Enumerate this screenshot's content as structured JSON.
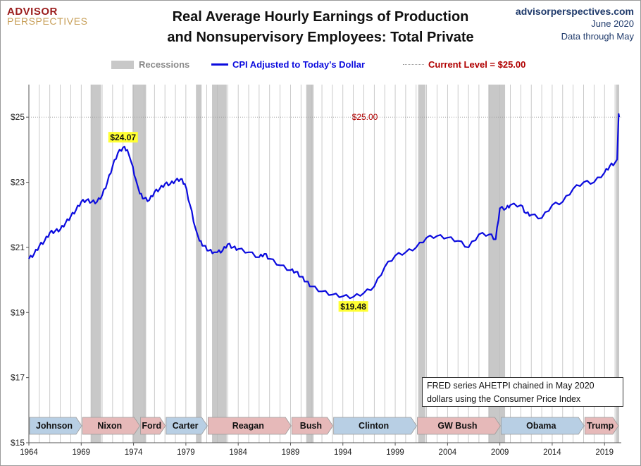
{
  "header": {
    "logo_line1": "ADVISOR",
    "logo_line2": "PERSPECTIVES",
    "site": "advisorperspectives.com",
    "date": "June 2020",
    "data_through": "Data through May"
  },
  "chart_data": {
    "type": "line",
    "title": "Real Average Hourly Earnings of Production and Nonsupervisory Employees: Total Private",
    "title_lines": [
      "Real Average Hourly Earnings of Production",
      "and Nonsupervisory Employees: Total Private"
    ],
    "xlabel": "",
    "ylabel": "",
    "xlim": [
      1964,
      2020.6
    ],
    "ylim": [
      15,
      26
    ],
    "x_ticks": [
      1964,
      1969,
      1974,
      1979,
      1984,
      1989,
      1994,
      1999,
      2004,
      2009,
      2014,
      2019
    ],
    "y_ticks": [
      15,
      17,
      19,
      21,
      23,
      25
    ],
    "y_tick_labels": [
      "$15",
      "$17",
      "$19",
      "$21",
      "$23",
      "$25"
    ],
    "grid": "vertical",
    "legend": {
      "placement": "top",
      "recessions": "Recessions",
      "series": "CPI Adjusted to Today's Dollar",
      "current": "Current Level = $25.00"
    },
    "colors": {
      "line": "#0b0bde",
      "recession": "#c8c8c8",
      "current": "#b00000",
      "annotation_bg": "#ffff33"
    },
    "series": [
      {
        "name": "CPI Adjusted to Today's Dollar",
        "x": [
          1964.0,
          1964.5,
          1965.0,
          1965.5,
          1966.0,
          1966.5,
          1967.0,
          1967.5,
          1968.0,
          1968.5,
          1969.0,
          1969.5,
          1970.0,
          1970.5,
          1971.0,
          1971.5,
          1972.0,
          1972.5,
          1973.0,
          1973.4,
          1973.8,
          1974.2,
          1974.6,
          1975.0,
          1975.5,
          1976.0,
          1976.5,
          1977.0,
          1977.5,
          1978.0,
          1978.5,
          1978.9,
          1979.4,
          1979.9,
          1980.3,
          1980.7,
          1981.2,
          1981.7,
          1982.0,
          1982.5,
          1983.0,
          1983.5,
          1984.0,
          1985.0,
          1986.0,
          1986.5,
          1987.0,
          1988.0,
          1989.0,
          1989.5,
          1990.0,
          1990.5,
          1991.0,
          1992.0,
          1993.0,
          1994.0,
          1995.0,
          1996.0,
          1997.0,
          1998.0,
          1999.0,
          2000.0,
          2001.0,
          2002.0,
          2003.0,
          2004.0,
          2005.0,
          2006.0,
          2007.0,
          2008.0,
          2008.6,
          2009.0,
          2009.6,
          2010.0,
          2011.0,
          2011.5,
          2012.0,
          2013.0,
          2014.0,
          2015.0,
          2016.0,
          2017.0,
          2018.0,
          2019.0,
          2019.5,
          2020.0,
          2020.2,
          2020.35,
          2020.4
        ],
        "values": [
          20.65,
          20.8,
          21.05,
          21.2,
          21.45,
          21.5,
          21.55,
          21.75,
          21.95,
          22.15,
          22.4,
          22.45,
          22.4,
          22.4,
          22.6,
          23.0,
          23.5,
          23.9,
          24.07,
          24.0,
          23.6,
          23.1,
          22.65,
          22.5,
          22.45,
          22.7,
          22.8,
          22.95,
          22.95,
          23.05,
          23.1,
          22.95,
          22.3,
          21.6,
          21.2,
          21.05,
          20.9,
          20.85,
          20.85,
          20.9,
          21.1,
          21.0,
          20.95,
          20.85,
          20.7,
          20.8,
          20.65,
          20.45,
          20.3,
          20.25,
          20.1,
          19.95,
          19.8,
          19.65,
          19.55,
          19.5,
          19.48,
          19.6,
          19.8,
          20.4,
          20.75,
          20.85,
          21.0,
          21.3,
          21.35,
          21.3,
          21.2,
          21.0,
          21.4,
          21.4,
          21.25,
          22.2,
          22.2,
          22.3,
          22.3,
          22.05,
          22.0,
          21.9,
          22.3,
          22.4,
          22.8,
          23.0,
          23.0,
          23.3,
          23.5,
          23.6,
          23.7,
          25.1,
          25.0
        ]
      }
    ],
    "recessions": [
      [
        1969.9,
        1970.9
      ],
      [
        1973.9,
        1975.2
      ],
      [
        1980.0,
        1980.5
      ],
      [
        1981.5,
        1982.9
      ],
      [
        1990.5,
        1991.2
      ],
      [
        2001.2,
        2001.9
      ],
      [
        2007.9,
        2009.5
      ],
      [
        2020.1,
        2020.4
      ]
    ],
    "annotations": [
      {
        "label": "$24.07",
        "x": 1973.0,
        "y": 24.07
      },
      {
        "label": "$19.48",
        "x": 1995.0,
        "y": 19.48
      },
      {
        "label": "$25.00",
        "x": 2020.4,
        "y": 25.0
      }
    ],
    "presidents": [
      {
        "name": "Johnson",
        "start": 1964.0,
        "end": 1969.05,
        "party": "D"
      },
      {
        "name": "Nixon",
        "start": 1969.05,
        "end": 1974.6,
        "party": "R"
      },
      {
        "name": "Ford",
        "start": 1974.6,
        "end": 1977.05,
        "party": "R"
      },
      {
        "name": "Carter",
        "start": 1977.05,
        "end": 1981.05,
        "party": "D"
      },
      {
        "name": "Reagan",
        "start": 1981.05,
        "end": 1989.05,
        "party": "R"
      },
      {
        "name": "Bush",
        "start": 1989.05,
        "end": 1993.05,
        "party": "R"
      },
      {
        "name": "Clinton",
        "start": 1993.05,
        "end": 2001.05,
        "party": "D"
      },
      {
        "name": "GW Bush",
        "start": 2001.05,
        "end": 2009.05,
        "party": "R"
      },
      {
        "name": "Obama",
        "start": 2009.05,
        "end": 2017.05,
        "party": "D"
      },
      {
        "name": "Trump",
        "start": 2017.05,
        "end": 2020.6,
        "party": "R"
      }
    ],
    "note_lines": [
      "FRED series AHETPI chained in May 2020",
      "dollars using the Consumer Price Index"
    ]
  }
}
